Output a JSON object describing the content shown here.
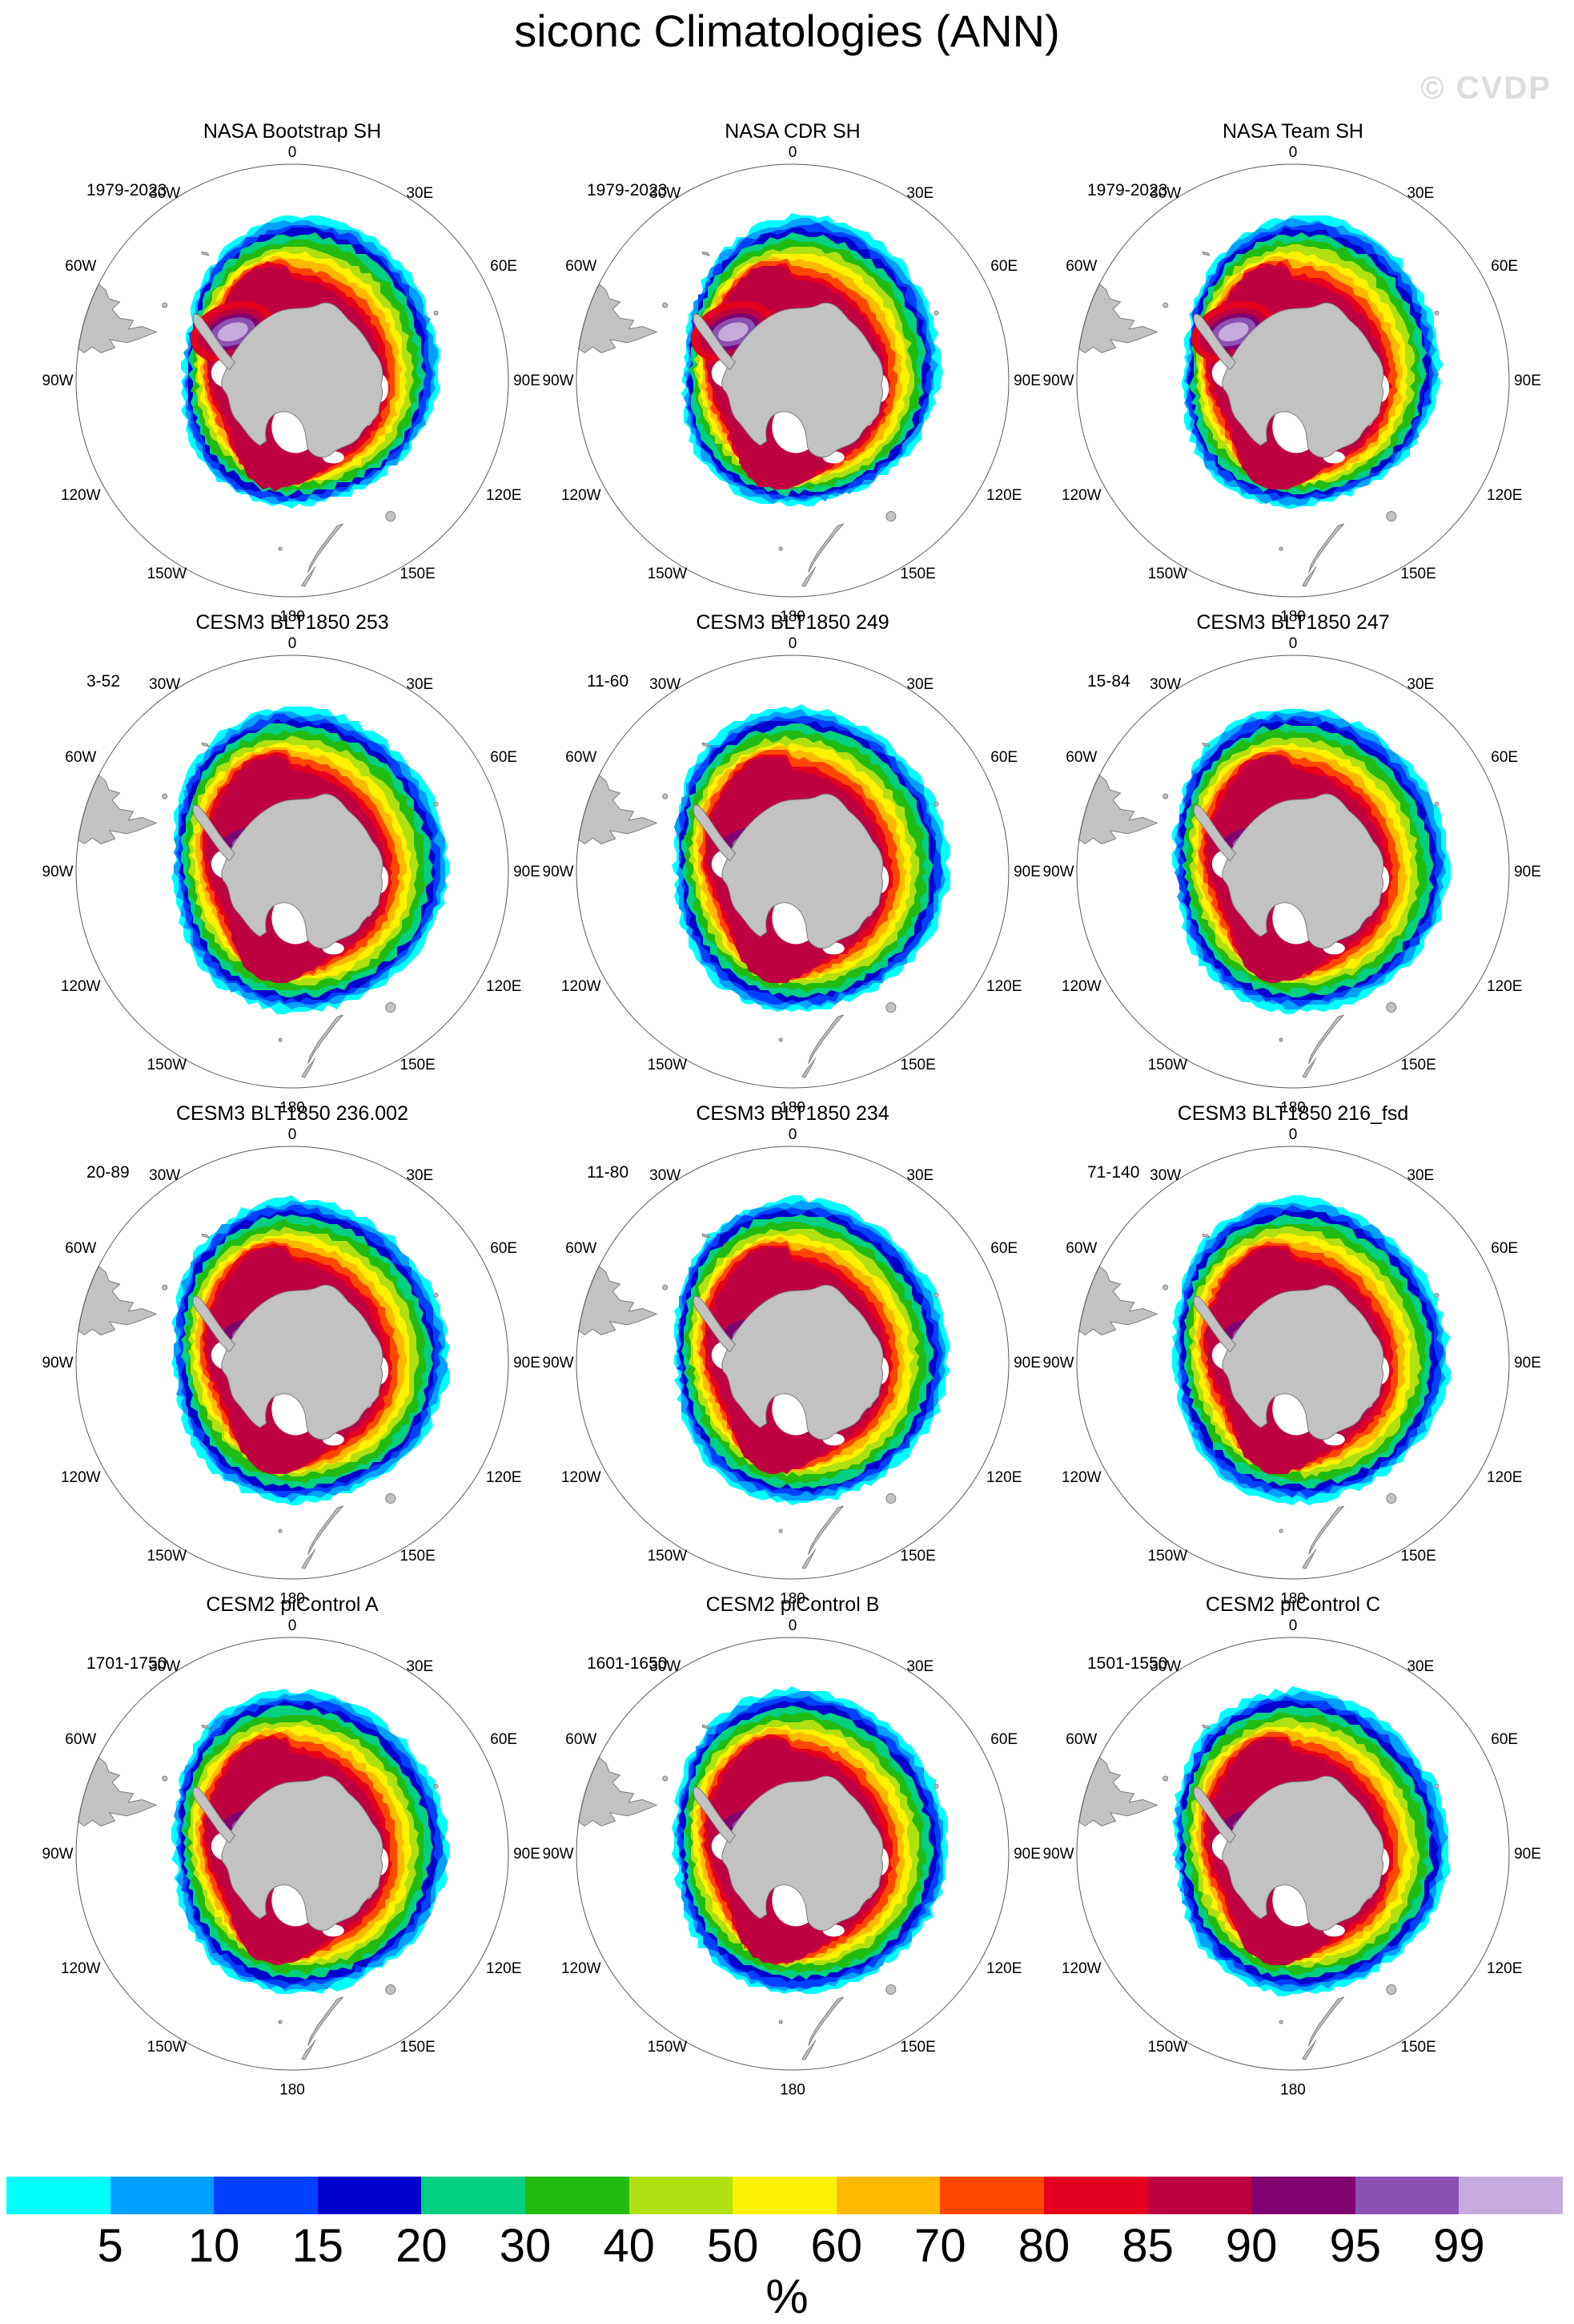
{
  "title": "siconc Climatologies (ANN)",
  "watermark": "© CVDP",
  "lon_labels": [
    "0",
    "30E",
    "60E",
    "90E",
    "120E",
    "150E",
    "180",
    "150W",
    "120W",
    "90W",
    "60W",
    "30W"
  ],
  "land_color": "#c2c2c2",
  "panels": [
    {
      "title": "NASA Bootstrap SH",
      "years": "1979-2023",
      "variant": "obs"
    },
    {
      "title": "NASA CDR SH",
      "years": "1979-2023",
      "variant": "obs"
    },
    {
      "title": "NASA Team SH",
      "years": "1979-2023",
      "variant": "obs"
    },
    {
      "title": "CESM3 BLT1850 253",
      "years": "3-52",
      "variant": "model"
    },
    {
      "title": "CESM3 BLT1850 249",
      "years": "11-60",
      "variant": "model"
    },
    {
      "title": "CESM3 BLT1850 247",
      "years": "15-84",
      "variant": "model"
    },
    {
      "title": "CESM3 BLT1850 236.002",
      "years": "20-89",
      "variant": "model"
    },
    {
      "title": "CESM3 BLT1850 234",
      "years": "11-80",
      "variant": "model"
    },
    {
      "title": "CESM3 BLT1850 216_fsd",
      "years": "71-140",
      "variant": "model"
    },
    {
      "title": "CESM2 piControl A",
      "years": "1701-1750",
      "variant": "model"
    },
    {
      "title": "CESM2 piControl B",
      "years": "1601-1650",
      "variant": "model"
    },
    {
      "title": "CESM2 piControl C",
      "years": "1501-1550",
      "variant": "model"
    }
  ],
  "colorbar": {
    "unit": "%",
    "tick_labels": [
      "5",
      "10",
      "15",
      "20",
      "30",
      "40",
      "50",
      "60",
      "70",
      "80",
      "85",
      "90",
      "95",
      "99"
    ],
    "colors": [
      "#00FFFF",
      "#00A0FF",
      "#0040FF",
      "#0000CD",
      "#00D080",
      "#22BB11",
      "#B0E010",
      "#FFF200",
      "#FFB900",
      "#FF4700",
      "#E4001F",
      "#BE0040",
      "#800070",
      "#8C51B5",
      "#C5ABDB"
    ]
  },
  "chart_data": {
    "type": "heatmap",
    "title": "siconc Climatologies (ANN)",
    "variable": "siconc (sea ice concentration)",
    "units": "%",
    "projection": "south polar stereographic",
    "season": "ANN",
    "grid": {
      "rows": 4,
      "cols": 3
    },
    "contour_levels": [
      5,
      10,
      15,
      20,
      30,
      40,
      50,
      60,
      70,
      80,
      85,
      90,
      95,
      99
    ],
    "palette": [
      "#00FFFF",
      "#00A0FF",
      "#0040FF",
      "#0000CD",
      "#00D080",
      "#22BB11",
      "#B0E010",
      "#FFF200",
      "#FFB900",
      "#FF4700",
      "#E4001F",
      "#BE0040",
      "#800070",
      "#8C51B5",
      "#C5ABDB"
    ],
    "legend_position": "bottom",
    "longitude_ring_labels": [
      "0",
      "30E",
      "60E",
      "90E",
      "120E",
      "150E",
      "180",
      "150W",
      "120W",
      "90W",
      "60W",
      "30W"
    ],
    "panels": [
      {
        "name": "NASA Bootstrap SH",
        "period": "1979-2023"
      },
      {
        "name": "NASA CDR SH",
        "period": "1979-2023"
      },
      {
        "name": "NASA Team SH",
        "period": "1979-2023"
      },
      {
        "name": "CESM3 BLT1850 253",
        "period": "3-52"
      },
      {
        "name": "CESM3 BLT1850 249",
        "period": "11-60"
      },
      {
        "name": "CESM3 BLT1850 247",
        "period": "15-84"
      },
      {
        "name": "CESM3 BLT1850 236.002",
        "period": "20-89"
      },
      {
        "name": "CESM3 BLT1850 234",
        "period": "11-80"
      },
      {
        "name": "CESM3 BLT1850 216_fsd",
        "period": "71-140"
      },
      {
        "name": "CESM2 piControl A",
        "period": "1701-1750"
      },
      {
        "name": "CESM2 piControl B",
        "period": "1601-1650"
      },
      {
        "name": "CESM2 piControl C",
        "period": "1501-1550"
      }
    ]
  }
}
